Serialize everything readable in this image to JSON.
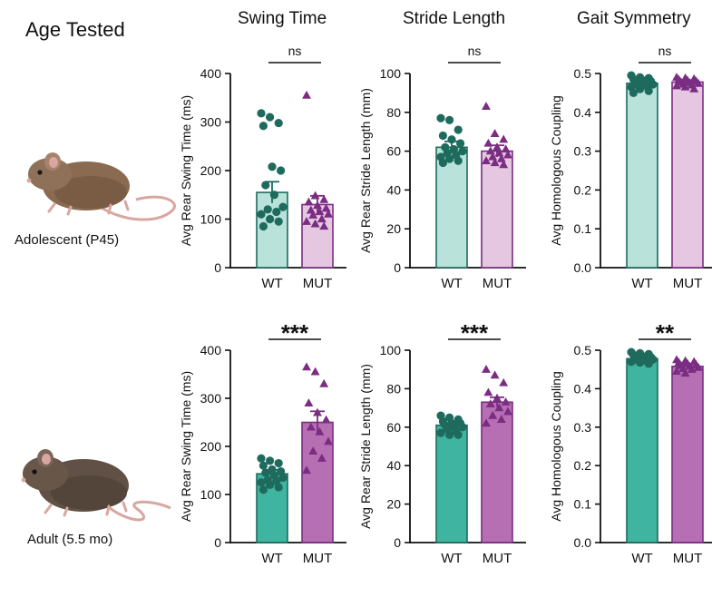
{
  "header": {
    "row_label_title": "Age Tested"
  },
  "columns": [
    "Swing Time",
    "Stride Length",
    "Gait Symmetry"
  ],
  "rows": [
    {
      "label": "Adolescent (P45)",
      "icon": "mouse-icon"
    },
    {
      "label": "Adult (5.5 mo)",
      "icon": "mouse-icon"
    }
  ],
  "colors": {
    "wt_adolescent_fill": "#b9e2da",
    "mut_adolescent_fill": "#e6c7e2",
    "wt_adult_fill": "#3fb4a0",
    "mut_adult_fill": "#b76fb3",
    "wt_point": "#1e6b5e",
    "mut_point": "#7a2d82",
    "wt_edge": "#1e6b5e",
    "mut_edge": "#7a2d82"
  },
  "chart_data": [
    {
      "id": "adolescent-swing",
      "type": "bar",
      "title": "Swing Time",
      "ylabel": "Avg Rear Swing Time (ms)",
      "categories": [
        "WT",
        "MUT"
      ],
      "values": [
        155,
        130
      ],
      "sem": [
        22,
        18
      ],
      "ylim": [
        0,
        400
      ],
      "yticks": [
        "0",
        "100",
        "200",
        "300",
        "400"
      ],
      "significance": "ns",
      "points": {
        "WT": [
          318,
          310,
          298,
          292,
          208,
          200,
          170,
          150,
          125,
          120,
          115,
          110,
          100,
          95,
          85
        ],
        "MUT": [
          355,
          148,
          140,
          135,
          128,
          122,
          118,
          115,
          110,
          108,
          100,
          95,
          90,
          85
        ]
      }
    },
    {
      "id": "adolescent-stride",
      "type": "bar",
      "title": "Stride Length",
      "ylabel": "Avg Rear Stride Length (mm)",
      "categories": [
        "WT",
        "MUT"
      ],
      "values": [
        62,
        60
      ],
      "sem": [
        3,
        3
      ],
      "ylim": [
        0,
        100
      ],
      "yticks": [
        "0",
        "20",
        "40",
        "60",
        "80",
        "100"
      ],
      "significance": "ns",
      "points": {
        "WT": [
          77,
          76,
          71,
          68,
          66,
          64,
          62,
          61,
          60,
          59,
          58,
          57,
          56,
          55,
          54
        ],
        "MUT": [
          83,
          69,
          66,
          64,
          62,
          61,
          60,
          59,
          58,
          57,
          56,
          55,
          54,
          53
        ]
      }
    },
    {
      "id": "adolescent-symmetry",
      "type": "bar",
      "title": "Gait Symmetry",
      "ylabel": "Avg Homologous Coupling",
      "categories": [
        "WT",
        "MUT"
      ],
      "values": [
        0.475,
        0.478
      ],
      "sem": [
        0.006,
        0.005
      ],
      "ylim": [
        0,
        0.5
      ],
      "yticks": [
        "0.0",
        "0.1",
        "0.2",
        "0.3",
        "0.4",
        "0.5"
      ],
      "significance": "ns",
      "points": {
        "WT": [
          0.495,
          0.49,
          0.488,
          0.485,
          0.483,
          0.48,
          0.478,
          0.476,
          0.472,
          0.47,
          0.468,
          0.465,
          0.46,
          0.455,
          0.45
        ],
        "MUT": [
          0.49,
          0.488,
          0.486,
          0.484,
          0.482,
          0.48,
          0.478,
          0.476,
          0.474,
          0.472,
          0.47,
          0.468,
          0.465,
          0.46
        ]
      }
    },
    {
      "id": "adult-swing",
      "type": "bar",
      "title": "",
      "ylabel": "Avg Rear Swing Time (ms)",
      "categories": [
        "WT",
        "MUT"
      ],
      "values": [
        143,
        250
      ],
      "sem": [
        8,
        23
      ],
      "ylim": [
        0,
        400
      ],
      "yticks": [
        "0",
        "100",
        "200",
        "300",
        "400"
      ],
      "significance": "***",
      "points": {
        "WT": [
          175,
          170,
          165,
          160,
          152,
          148,
          145,
          140,
          135,
          130,
          128,
          125,
          120,
          115,
          110
        ],
        "MUT": [
          365,
          355,
          330,
          290,
          270,
          255,
          240,
          230,
          210,
          190,
          175,
          150
        ]
      }
    },
    {
      "id": "adult-stride",
      "type": "bar",
      "title": "",
      "ylabel": "Avg Rear Stride Length (mm)",
      "categories": [
        "WT",
        "MUT"
      ],
      "values": [
        61,
        73
      ],
      "sem": [
        1.2,
        2.5
      ],
      "ylim": [
        0,
        100
      ],
      "yticks": [
        "0",
        "20",
        "40",
        "60",
        "80",
        "100"
      ],
      "significance": "***",
      "points": {
        "WT": [
          66,
          65,
          64,
          63,
          62,
          62,
          61,
          60,
          60,
          59,
          58,
          57,
          56,
          56
        ],
        "MUT": [
          90,
          87,
          83,
          78,
          75,
          73,
          72,
          70,
          68,
          66,
          64,
          62
        ]
      }
    },
    {
      "id": "adult-symmetry",
      "type": "bar",
      "title": "",
      "ylabel": "Avg Homologous Coupling",
      "categories": [
        "WT",
        "MUT"
      ],
      "values": [
        0.478,
        0.458
      ],
      "sem": [
        0.004,
        0.005
      ],
      "ylim": [
        0,
        0.5
      ],
      "yticks": [
        "0.0",
        "0.1",
        "0.2",
        "0.3",
        "0.4",
        "0.5"
      ],
      "significance": "**",
      "points": {
        "WT": [
          0.495,
          0.492,
          0.49,
          0.488,
          0.485,
          0.482,
          0.48,
          0.478,
          0.476,
          0.474,
          0.472,
          0.47,
          0.468,
          0.465
        ],
        "MUT": [
          0.475,
          0.472,
          0.47,
          0.468,
          0.465,
          0.462,
          0.46,
          0.458,
          0.455,
          0.452,
          0.45,
          0.445,
          0.44
        ]
      }
    }
  ]
}
